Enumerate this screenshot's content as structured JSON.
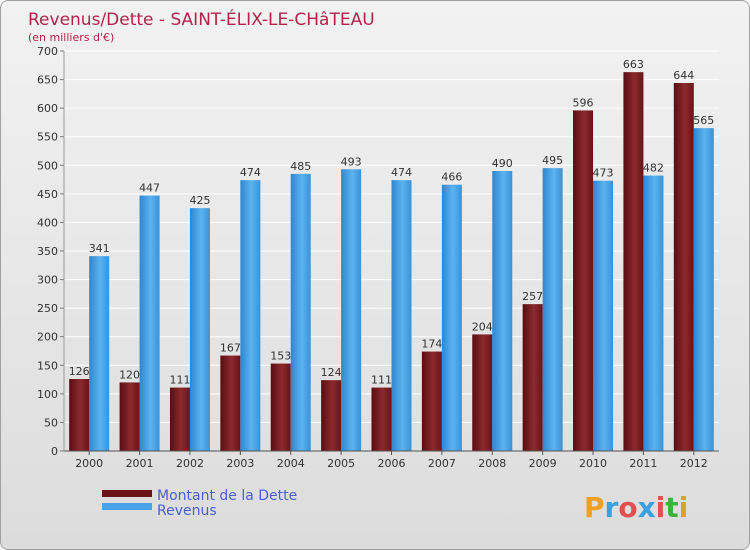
{
  "chart_data": {
    "type": "bar",
    "title": "Revenus/Dette - SAINT-ÉLIX-LE-CHâTEAU",
    "subtitle": "(en milliers d'€)",
    "categories": [
      "2000",
      "2001",
      "2002",
      "2003",
      "2004",
      "2005",
      "2006",
      "2007",
      "2008",
      "2009",
      "2010",
      "2011",
      "2012"
    ],
    "series": [
      {
        "name": "Montant de la Dette",
        "color": "#7a1a1f",
        "values": [
          126,
          120,
          111,
          167,
          153,
          124,
          111,
          174,
          204,
          257,
          596,
          663,
          644
        ]
      },
      {
        "name": "Revenus",
        "color": "#4aa3e6",
        "values": [
          341,
          447,
          425,
          474,
          485,
          493,
          474,
          466,
          490,
          495,
          473,
          482,
          565
        ]
      }
    ],
    "ylim": [
      0,
      700
    ],
    "yticks": [
      0,
      50,
      100,
      150,
      200,
      250,
      300,
      350,
      400,
      450,
      500,
      550,
      600,
      650,
      700
    ],
    "grid": true,
    "legend_position": "bottom-left"
  },
  "branding": {
    "letters": [
      "P",
      "r",
      "o",
      "x",
      "i",
      "t",
      "i"
    ],
    "colors": [
      "#f0a020",
      "#3aa0e0",
      "#e05050",
      "#3aa0e0",
      "#e05050",
      "#40b040",
      "#e0a020"
    ]
  }
}
